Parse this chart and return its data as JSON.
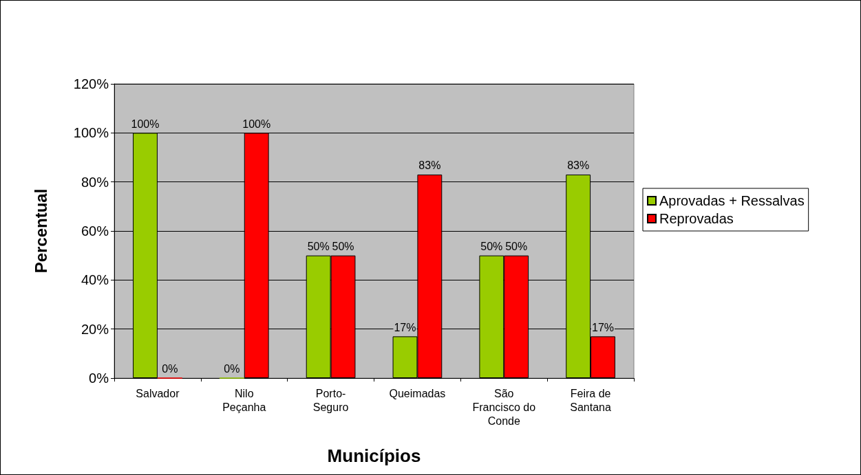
{
  "chart_data": {
    "type": "bar",
    "xlabel": "Municípios",
    "ylabel": "Percentual",
    "categories": [
      "Salvador",
      "Nilo\nPeçanha",
      "Porto-\nSeguro",
      "Queimadas",
      "São\nFrancisco do\nConde",
      "Feira de\nSantana"
    ],
    "series": [
      {
        "name": "Aprovadas + Ressalvas",
        "color": "#99cc00",
        "values": [
          100,
          0,
          50,
          17,
          50,
          83
        ],
        "value_labels": [
          "100%",
          "0%",
          "50%",
          "17%",
          "50%",
          "83%"
        ]
      },
      {
        "name": "Reprovadas",
        "color": "#ff0000",
        "values": [
          0,
          100,
          50,
          83,
          50,
          17
        ],
        "value_labels": [
          "0%",
          "100%",
          "50%",
          "83%",
          "50%",
          "17%"
        ]
      }
    ],
    "ylim": [
      0,
      120
    ],
    "yticks": [
      {
        "value": 0,
        "label": "0%"
      },
      {
        "value": 20,
        "label": "20%"
      },
      {
        "value": 40,
        "label": "40%"
      },
      {
        "value": 60,
        "label": "60%"
      },
      {
        "value": 80,
        "label": "80%"
      },
      {
        "value": 100,
        "label": "100%"
      },
      {
        "value": 120,
        "label": "120%"
      }
    ],
    "grid": "y",
    "legend": "right"
  }
}
